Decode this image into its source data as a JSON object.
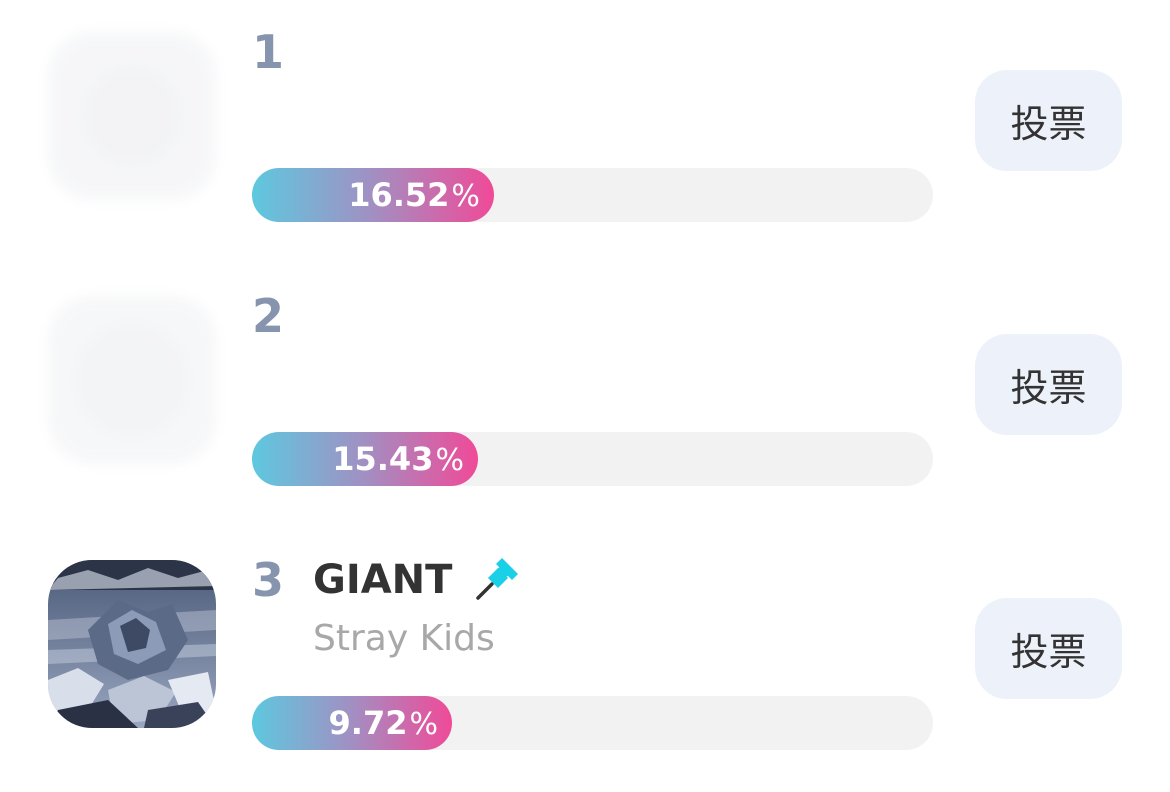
{
  "colors": {
    "rank": "#8794ad",
    "title": "#333333",
    "artist": "#a8a8a8",
    "track": "#f2f2f2",
    "fill_start": "#5ec8df",
    "fill_end": "#f04a98",
    "vote_bg": "#edf1fa",
    "pin": "#1ad0e8"
  },
  "percent_sign": "%",
  "entries": [
    {
      "rank": "1",
      "title": "",
      "artist": "",
      "percent": "16.52",
      "vote_label": "投票",
      "thumb_visible": false,
      "pinned": false
    },
    {
      "rank": "2",
      "title": "",
      "artist": "",
      "percent": "15.43",
      "vote_label": "投票",
      "thumb_visible": false,
      "pinned": false
    },
    {
      "rank": "3",
      "title": "GIANT",
      "artist": "Stray Kids",
      "percent": "9.72",
      "vote_label": "投票",
      "thumb_visible": true,
      "pinned": true,
      "pin_icon": "pushpin-icon"
    }
  ]
}
